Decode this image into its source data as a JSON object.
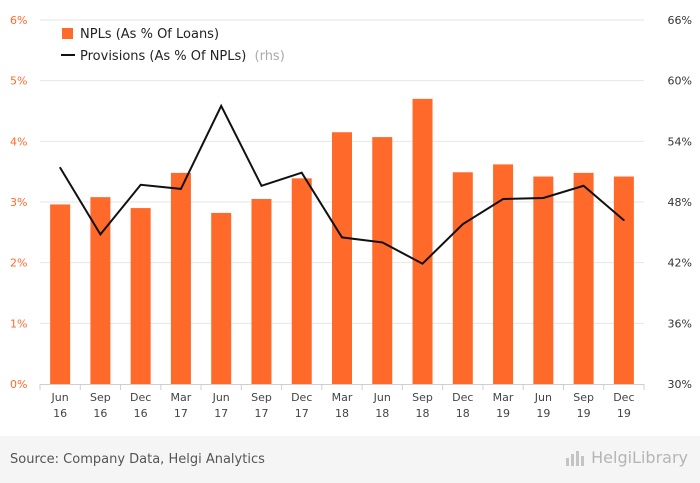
{
  "chart_data": {
    "type": "bar+line",
    "categories": [
      [
        "Jun",
        "16"
      ],
      [
        "Sep",
        "16"
      ],
      [
        "Dec",
        "16"
      ],
      [
        "Mar",
        "17"
      ],
      [
        "Jun",
        "17"
      ],
      [
        "Sep",
        "17"
      ],
      [
        "Dec",
        "17"
      ],
      [
        "Mar",
        "18"
      ],
      [
        "Jun",
        "18"
      ],
      [
        "Sep",
        "18"
      ],
      [
        "Dec",
        "18"
      ],
      [
        "Mar",
        "19"
      ],
      [
        "Jun",
        "19"
      ],
      [
        "Sep",
        "19"
      ],
      [
        "Dec",
        "19"
      ]
    ],
    "series": [
      {
        "name": "NPLs (As % Of Loans)",
        "axis": "left",
        "kind": "bar",
        "color": "#ff6a2b",
        "values": [
          2.96,
          3.08,
          2.9,
          3.48,
          2.82,
          3.05,
          3.39,
          4.15,
          4.07,
          4.7,
          3.49,
          3.62,
          3.42,
          3.48,
          3.42
        ]
      },
      {
        "name": "Provisions (As % Of NPLs)",
        "name_suffix": "(rhs)",
        "axis": "right",
        "kind": "line",
        "color": "#111111",
        "values": [
          51.4,
          44.8,
          49.7,
          49.3,
          57.5,
          49.6,
          50.9,
          44.5,
          44.0,
          41.9,
          45.8,
          48.3,
          48.4,
          49.6,
          46.2
        ]
      }
    ],
    "left_axis": {
      "min": 0,
      "max": 6,
      "step": 1,
      "suffix": "%",
      "color": "#ff6a2b",
      "ticks": [
        "0%",
        "1%",
        "2%",
        "3%",
        "4%",
        "5%",
        "6%"
      ]
    },
    "right_axis": {
      "min": 30,
      "max": 66,
      "step": 6,
      "suffix": "%",
      "color": "#333333",
      "ticks": [
        "30%",
        "36%",
        "42%",
        "48%",
        "54%",
        "60%",
        "66%"
      ]
    },
    "grid": true,
    "legend_position": "top-left"
  },
  "footer": {
    "source": "Source: Company Data, Helgi Analytics",
    "brand": "HelgiLibrary"
  },
  "colors": {
    "accent": "#ff6a2b",
    "grid": "#e6e6e6",
    "footer_bg": "#f5f5f5"
  }
}
